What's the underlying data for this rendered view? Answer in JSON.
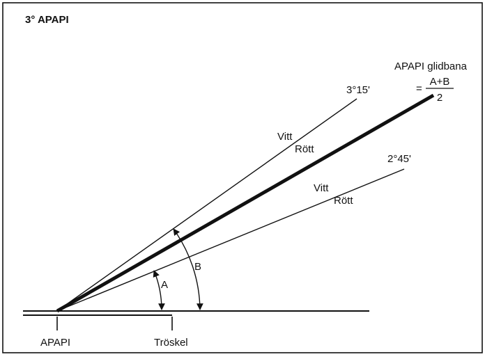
{
  "title": "3° APAPI",
  "glidepath": {
    "label": "APAPI glidbana",
    "equals": "=",
    "numerator": "A+B",
    "denominator": "2"
  },
  "upper_beam": {
    "angle_label": "3°15'",
    "white_label": "Vitt",
    "red_label": "Rött"
  },
  "lower_beam": {
    "angle_label": "2°45'",
    "white_label": "Vitt",
    "red_label": "Rött"
  },
  "angles": {
    "a_label": "A",
    "b_label": "B"
  },
  "ground": {
    "apapi_label": "APAPI",
    "threshold_label": "Tröskel"
  },
  "colors": {
    "stroke": "#111111",
    "background": "#ffffff"
  }
}
